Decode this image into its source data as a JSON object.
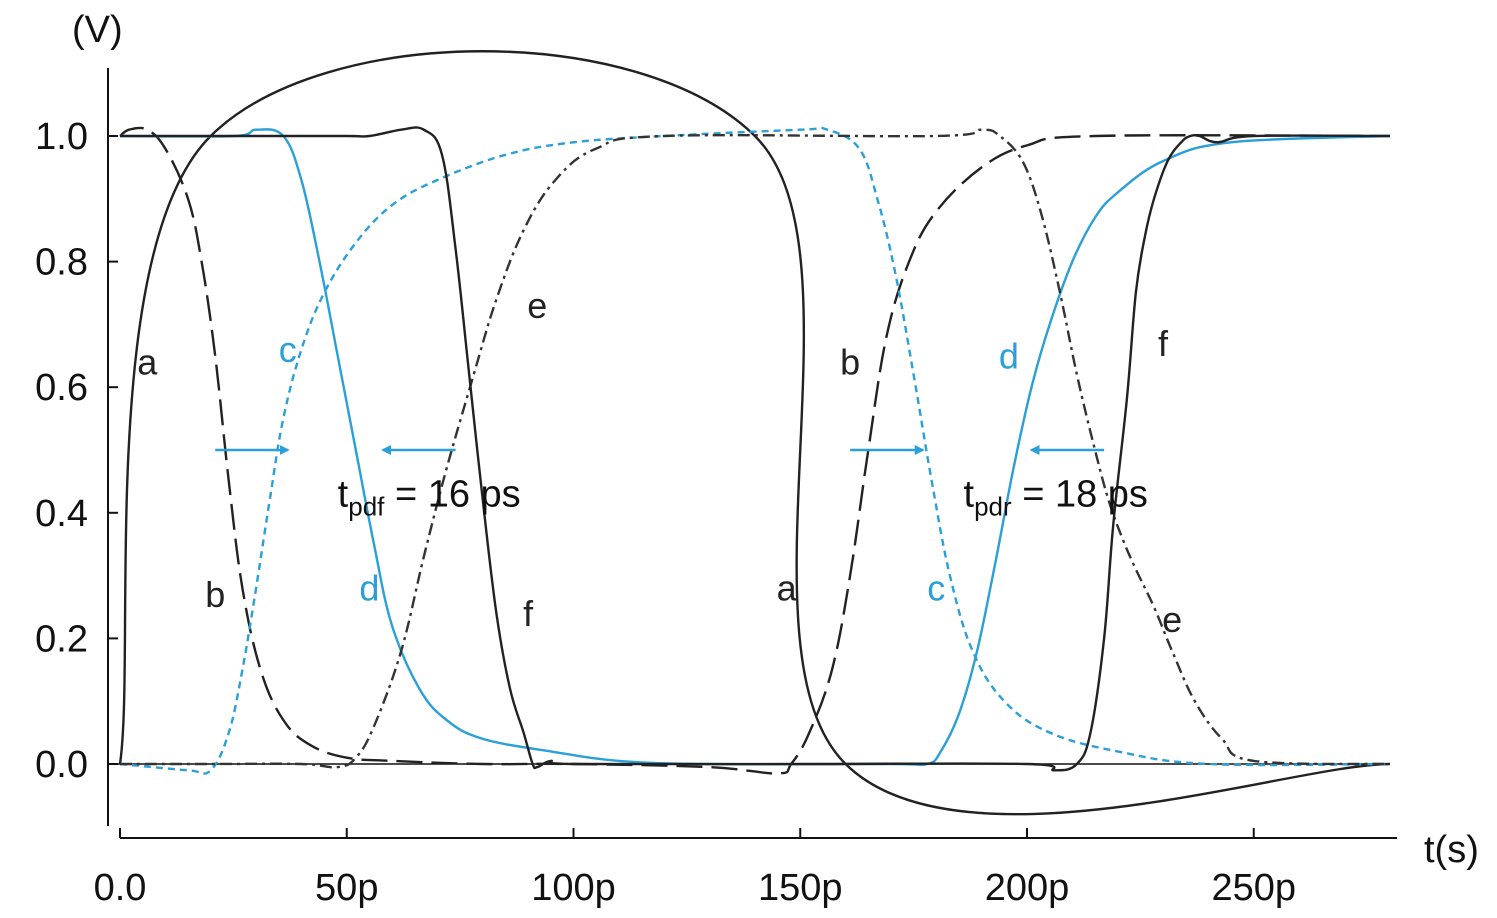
{
  "chart_data": {
    "type": "line",
    "xlabel": "t(s)",
    "ylabel": "(V)",
    "xlim": [
      0,
      280
    ],
    "ylim": [
      -0.1,
      1.1
    ],
    "grid": false,
    "x_ticks": [
      {
        "value": 0,
        "label": "0.0"
      },
      {
        "value": 50,
        "label": "50p"
      },
      {
        "value": 100,
        "label": "100p"
      },
      {
        "value": 150,
        "label": "150p"
      },
      {
        "value": 200,
        "label": "200p"
      },
      {
        "value": 250,
        "label": "250p"
      }
    ],
    "y_ticks": [
      {
        "value": 0.0,
        "label": "0.0"
      },
      {
        "value": 0.2,
        "label": "0.2"
      },
      {
        "value": 0.4,
        "label": "0.4"
      },
      {
        "value": 0.6,
        "label": "0.6"
      },
      {
        "value": 0.8,
        "label": "0.8"
      },
      {
        "value": 1.0,
        "label": "1.0"
      }
    ],
    "series": [
      {
        "name": "a",
        "color": "#222222",
        "dash": "none",
        "points": [
          [
            0,
            0
          ],
          [
            20,
            1.0
          ],
          [
            140,
            1.0
          ],
          [
            160,
            0.0
          ],
          [
            280,
            0.0
          ]
        ]
      },
      {
        "name": "b",
        "color": "#222222",
        "dash": "26,9",
        "points": [
          [
            0,
            1.0
          ],
          [
            2,
            1.01
          ],
          [
            6,
            1.01
          ],
          [
            10,
            0.98
          ],
          [
            15,
            0.9
          ],
          [
            18,
            0.8
          ],
          [
            21,
            0.65
          ],
          [
            24,
            0.45
          ],
          [
            27,
            0.28
          ],
          [
            31,
            0.15
          ],
          [
            36,
            0.07
          ],
          [
            42,
            0.03
          ],
          [
            50,
            0.01
          ],
          [
            60,
            0.005
          ],
          [
            80,
            0.0
          ],
          [
            100,
            0.0
          ],
          [
            130,
            -0.005
          ],
          [
            145,
            -0.015
          ],
          [
            148,
            0.0
          ],
          [
            152,
            0.05
          ],
          [
            157,
            0.15
          ],
          [
            161,
            0.3
          ],
          [
            165,
            0.5
          ],
          [
            169,
            0.68
          ],
          [
            174,
            0.8
          ],
          [
            180,
            0.88
          ],
          [
            190,
            0.95
          ],
          [
            200,
            0.985
          ],
          [
            215,
            1.0
          ],
          [
            280,
            1.0
          ]
        ]
      },
      {
        "name": "c",
        "color": "#2a9fd8",
        "dash": "7,5",
        "points": [
          [
            0,
            0
          ],
          [
            15,
            -0.01
          ],
          [
            20,
            -0.01
          ],
          [
            24,
            0.05
          ],
          [
            27,
            0.15
          ],
          [
            30,
            0.28
          ],
          [
            33,
            0.42
          ],
          [
            36,
            0.55
          ],
          [
            40,
            0.66
          ],
          [
            45,
            0.75
          ],
          [
            52,
            0.83
          ],
          [
            60,
            0.89
          ],
          [
            70,
            0.93
          ],
          [
            85,
            0.97
          ],
          [
            100,
            0.99
          ],
          [
            120,
            1.0
          ],
          [
            150,
            1.01
          ],
          [
            156,
            1.01
          ],
          [
            163,
            0.98
          ],
          [
            167,
            0.9
          ],
          [
            171,
            0.78
          ],
          [
            175,
            0.62
          ],
          [
            179,
            0.45
          ],
          [
            183,
            0.3
          ],
          [
            188,
            0.18
          ],
          [
            195,
            0.1
          ],
          [
            205,
            0.05
          ],
          [
            220,
            0.02
          ],
          [
            240,
            0.0
          ],
          [
            280,
            0.0
          ]
        ]
      },
      {
        "name": "d",
        "color": "#2a9fd8",
        "dash": "none",
        "points": [
          [
            0,
            1.0
          ],
          [
            25,
            1.0
          ],
          [
            30,
            1.01
          ],
          [
            36,
            1.0
          ],
          [
            40,
            0.93
          ],
          [
            44,
            0.8
          ],
          [
            48,
            0.65
          ],
          [
            52,
            0.5
          ],
          [
            56,
            0.35
          ],
          [
            60,
            0.22
          ],
          [
            66,
            0.12
          ],
          [
            72,
            0.07
          ],
          [
            80,
            0.04
          ],
          [
            95,
            0.02
          ],
          [
            110,
            0.005
          ],
          [
            130,
            0.0
          ],
          [
            170,
            0.0
          ],
          [
            178,
            0.0
          ],
          [
            181,
            0.02
          ],
          [
            185,
            0.08
          ],
          [
            189,
            0.18
          ],
          [
            193,
            0.32
          ],
          [
            197,
            0.47
          ],
          [
            201,
            0.6
          ],
          [
            205,
            0.7
          ],
          [
            210,
            0.8
          ],
          [
            215,
            0.87
          ],
          [
            220,
            0.91
          ],
          [
            230,
            0.96
          ],
          [
            245,
            0.99
          ],
          [
            280,
            1.0
          ]
        ]
      },
      {
        "name": "e",
        "color": "#333333",
        "dash": "12,5,3,5",
        "points": [
          [
            0,
            0
          ],
          [
            20,
            0
          ],
          [
            40,
            0
          ],
          [
            48,
            -0.005
          ],
          [
            52,
            0.01
          ],
          [
            56,
            0.06
          ],
          [
            62,
            0.18
          ],
          [
            67,
            0.33
          ],
          [
            72,
            0.47
          ],
          [
            78,
            0.62
          ],
          [
            83,
            0.74
          ],
          [
            89,
            0.85
          ],
          [
            96,
            0.93
          ],
          [
            105,
            0.98
          ],
          [
            120,
            1.0
          ],
          [
            180,
            1.0
          ],
          [
            190,
            1.01
          ],
          [
            194,
            1.0
          ],
          [
            199,
            0.96
          ],
          [
            203,
            0.88
          ],
          [
            207,
            0.76
          ],
          [
            211,
            0.62
          ],
          [
            215,
            0.5
          ],
          [
            218,
            0.42
          ],
          [
            221,
            0.36
          ],
          [
            224,
            0.31
          ],
          [
            228,
            0.25
          ],
          [
            232,
            0.18
          ],
          [
            237,
            0.1
          ],
          [
            243,
            0.04
          ],
          [
            250,
            0.005
          ],
          [
            280,
            0.0
          ]
        ]
      },
      {
        "name": "f",
        "color": "#222222",
        "dash": "none",
        "points": [
          [
            0,
            1.0
          ],
          [
            30,
            1.0
          ],
          [
            50,
            1.0
          ],
          [
            55,
            1.0
          ],
          [
            62,
            1.01
          ],
          [
            67,
            1.01
          ],
          [
            71,
            0.97
          ],
          [
            74,
            0.82
          ],
          [
            77,
            0.62
          ],
          [
            80,
            0.42
          ],
          [
            83,
            0.24
          ],
          [
            86,
            0.12
          ],
          [
            89,
            0.05
          ],
          [
            91,
            0.0
          ],
          [
            92,
            -0.005
          ],
          [
            95,
            0.005
          ],
          [
            100,
            0.0
          ],
          [
            150,
            0.0
          ],
          [
            200,
            0.0
          ],
          [
            206,
            -0.01
          ],
          [
            211,
            0.0
          ],
          [
            214,
            0.05
          ],
          [
            217,
            0.2
          ],
          [
            219,
            0.38
          ],
          [
            222,
            0.58
          ],
          [
            224,
            0.75
          ],
          [
            226,
            0.84
          ],
          [
            228,
            0.9
          ],
          [
            231,
            0.96
          ],
          [
            234,
            0.99
          ],
          [
            236,
            1.0
          ],
          [
            238,
            1.0
          ],
          [
            242,
            0.99
          ],
          [
            250,
            1.0
          ],
          [
            280,
            1.0
          ]
        ]
      }
    ],
    "curve_labels": [
      {
        "text": "a",
        "x": 6,
        "y": 0.62,
        "color": "#222222"
      },
      {
        "text": "b",
        "x": 21,
        "y": 0.25,
        "color": "#222222"
      },
      {
        "text": "c",
        "x": 37,
        "y": 0.64,
        "color": "#2a9fd8"
      },
      {
        "text": "d",
        "x": 55,
        "y": 0.26,
        "color": "#2a9fd8"
      },
      {
        "text": "e",
        "x": 92,
        "y": 0.71,
        "color": "#222222"
      },
      {
        "text": "f",
        "x": 90,
        "y": 0.22,
        "color": "#222222"
      },
      {
        "text": "b",
        "x": 161,
        "y": 0.62,
        "color": "#222222"
      },
      {
        "text": "a",
        "x": 147,
        "y": 0.26,
        "color": "#222222"
      },
      {
        "text": "d",
        "x": 196,
        "y": 0.63,
        "color": "#2a9fd8"
      },
      {
        "text": "c",
        "x": 180,
        "y": 0.26,
        "color": "#2a9fd8"
      },
      {
        "text": "f",
        "x": 230,
        "y": 0.65,
        "color": "#222222"
      },
      {
        "text": "e",
        "x": 232,
        "y": 0.21,
        "color": "#222222"
      }
    ],
    "annotations": [
      {
        "t": "t",
        "sub": "pdf",
        "rest": " = 16 ps",
        "x": 48,
        "y": 0.41,
        "arrows": [
          {
            "from": 21,
            "to": 37,
            "y": 0.5
          },
          {
            "from": 74,
            "to": 58,
            "y": 0.5
          }
        ]
      },
      {
        "t": "t",
        "sub": "pdr",
        "rest": " = 18 ps",
        "x": 186,
        "y": 0.41,
        "arrows": [
          {
            "from": 161,
            "to": 177,
            "y": 0.5
          },
          {
            "from": 217,
            "to": 201,
            "y": 0.5
          }
        ]
      }
    ],
    "arrow_color": "#2a9fd8"
  }
}
